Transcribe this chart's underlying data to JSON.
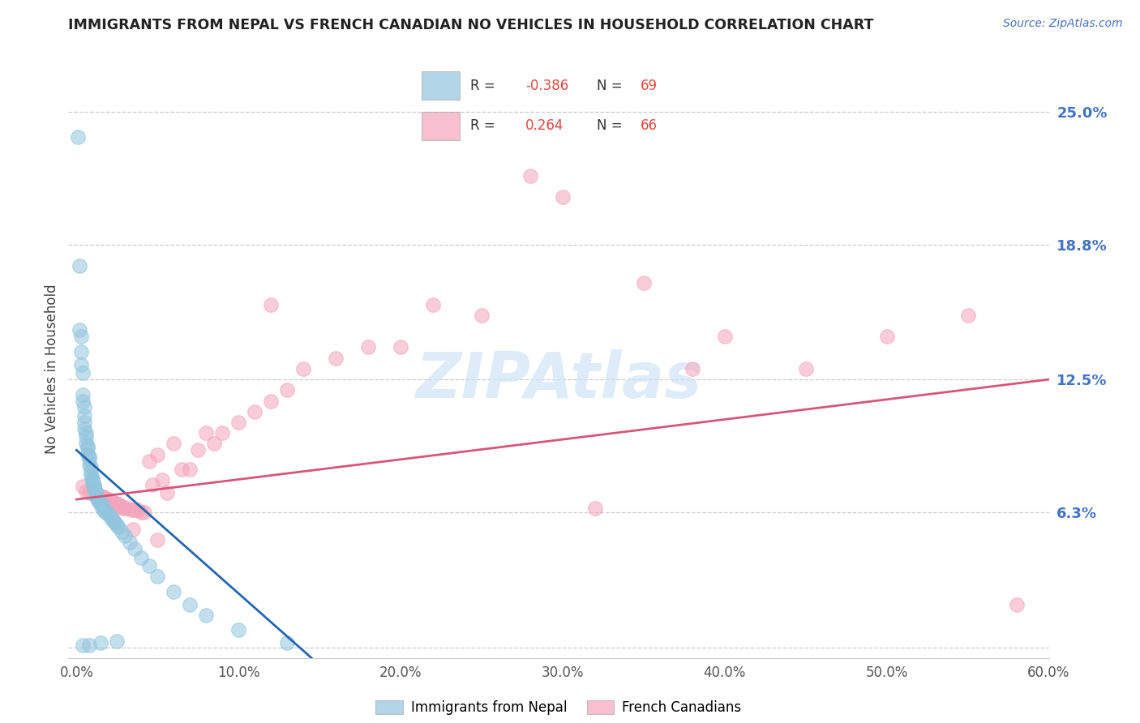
{
  "title": "IMMIGRANTS FROM NEPAL VS FRENCH CANADIAN NO VEHICLES IN HOUSEHOLD CORRELATION CHART",
  "source_text": "Source: ZipAtlas.com",
  "ylabel": "No Vehicles in Household",
  "watermark": "ZIPAtlas",
  "xlim": [
    -0.005,
    0.6
  ],
  "ylim": [
    -0.005,
    0.265
  ],
  "xticks": [
    0.0,
    0.1,
    0.2,
    0.3,
    0.4,
    0.5,
    0.6
  ],
  "xticklabels": [
    "0.0%",
    "10.0%",
    "20.0%",
    "30.0%",
    "40.0%",
    "50.0%",
    "60.0%"
  ],
  "yticks_right": [
    0.0,
    0.063,
    0.125,
    0.188,
    0.25
  ],
  "ytick_right_labels": [
    "",
    "6.3%",
    "12.5%",
    "18.8%",
    "25.0%"
  ],
  "nepal_R": -0.386,
  "nepal_N": 69,
  "french_R": 0.264,
  "french_N": 66,
  "nepal_color": "#92c5de",
  "french_color": "#f4a5bb",
  "nepal_line_color": "#2166ac",
  "french_line_color": "#d6567a",
  "nepal_x": [
    0.001,
    0.002,
    0.002,
    0.003,
    0.003,
    0.003,
    0.004,
    0.004,
    0.004,
    0.005,
    0.005,
    0.005,
    0.005,
    0.006,
    0.006,
    0.006,
    0.007,
    0.007,
    0.007,
    0.008,
    0.008,
    0.008,
    0.009,
    0.009,
    0.009,
    0.01,
    0.01,
    0.01,
    0.011,
    0.011,
    0.011,
    0.012,
    0.012,
    0.012,
    0.013,
    0.013,
    0.014,
    0.014,
    0.015,
    0.015,
    0.016,
    0.016,
    0.017,
    0.017,
    0.018,
    0.019,
    0.02,
    0.021,
    0.022,
    0.023,
    0.024,
    0.025,
    0.026,
    0.028,
    0.03,
    0.033,
    0.036,
    0.04,
    0.045,
    0.05,
    0.06,
    0.07,
    0.08,
    0.1,
    0.13,
    0.025,
    0.015,
    0.008,
    0.004
  ],
  "nepal_y": [
    0.238,
    0.178,
    0.148,
    0.145,
    0.138,
    0.132,
    0.128,
    0.118,
    0.115,
    0.112,
    0.108,
    0.105,
    0.102,
    0.1,
    0.098,
    0.095,
    0.094,
    0.093,
    0.09,
    0.089,
    0.088,
    0.085,
    0.084,
    0.082,
    0.08,
    0.079,
    0.078,
    0.077,
    0.076,
    0.075,
    0.074,
    0.073,
    0.072,
    0.071,
    0.07,
    0.069,
    0.069,
    0.068,
    0.067,
    0.067,
    0.066,
    0.065,
    0.065,
    0.064,
    0.063,
    0.063,
    0.062,
    0.061,
    0.06,
    0.059,
    0.058,
    0.057,
    0.056,
    0.054,
    0.052,
    0.049,
    0.046,
    0.042,
    0.038,
    0.033,
    0.026,
    0.02,
    0.015,
    0.008,
    0.002,
    0.003,
    0.002,
    0.001,
    0.001
  ],
  "french_x": [
    0.004,
    0.006,
    0.008,
    0.01,
    0.012,
    0.013,
    0.014,
    0.015,
    0.016,
    0.017,
    0.018,
    0.019,
    0.02,
    0.021,
    0.022,
    0.022,
    0.023,
    0.024,
    0.025,
    0.026,
    0.027,
    0.028,
    0.029,
    0.03,
    0.032,
    0.034,
    0.036,
    0.038,
    0.04,
    0.042,
    0.045,
    0.047,
    0.05,
    0.053,
    0.056,
    0.06,
    0.065,
    0.07,
    0.075,
    0.08,
    0.085,
    0.09,
    0.1,
    0.11,
    0.12,
    0.13,
    0.14,
    0.16,
    0.18,
    0.2,
    0.22,
    0.25,
    0.28,
    0.3,
    0.35,
    0.38,
    0.4,
    0.45,
    0.5,
    0.55,
    0.58,
    0.32,
    0.12,
    0.05,
    0.035,
    0.025
  ],
  "french_y": [
    0.075,
    0.073,
    0.072,
    0.072,
    0.071,
    0.071,
    0.071,
    0.07,
    0.07,
    0.07,
    0.069,
    0.069,
    0.069,
    0.068,
    0.068,
    0.068,
    0.067,
    0.067,
    0.067,
    0.066,
    0.066,
    0.066,
    0.065,
    0.065,
    0.065,
    0.064,
    0.064,
    0.064,
    0.063,
    0.063,
    0.087,
    0.076,
    0.09,
    0.078,
    0.072,
    0.095,
    0.083,
    0.083,
    0.092,
    0.1,
    0.095,
    0.1,
    0.105,
    0.11,
    0.115,
    0.12,
    0.13,
    0.135,
    0.14,
    0.14,
    0.16,
    0.155,
    0.22,
    0.21,
    0.17,
    0.13,
    0.145,
    0.13,
    0.145,
    0.155,
    0.02,
    0.065,
    0.16,
    0.05,
    0.055,
    0.065
  ],
  "nepal_line_x0": 0.0,
  "nepal_line_x1": 0.145,
  "nepal_line_y0": 0.092,
  "nepal_line_y1": -0.005,
  "french_line_x0": 0.0,
  "french_line_x1": 0.6,
  "french_line_y0": 0.069,
  "french_line_y1": 0.125
}
